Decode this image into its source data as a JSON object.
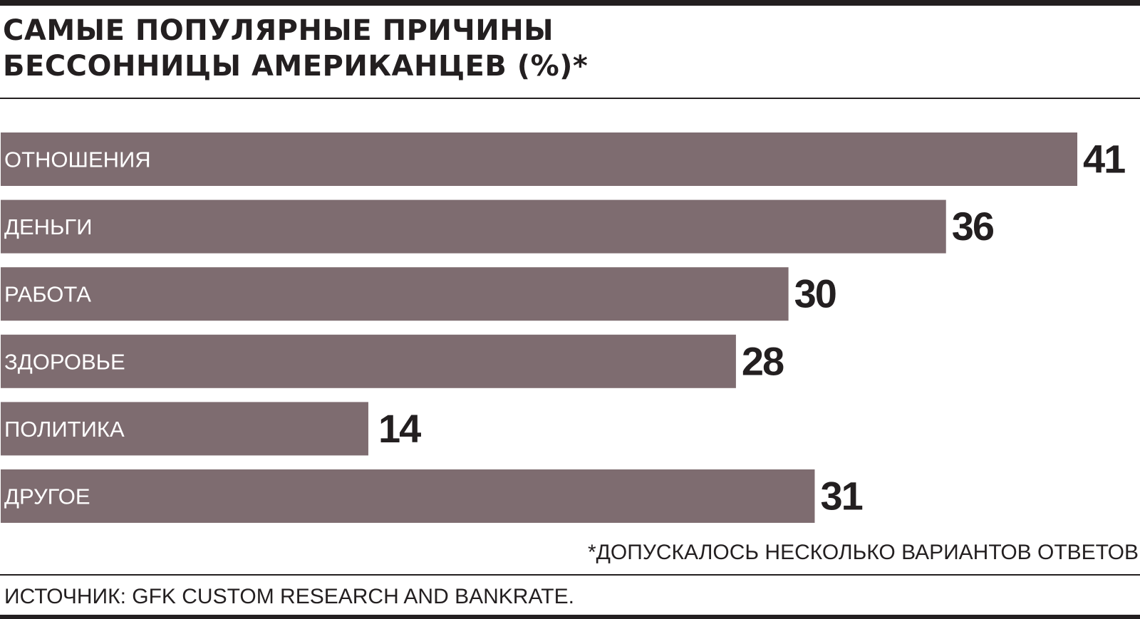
{
  "colors": {
    "bar": "#7e6c70",
    "bar_label": "#ffffff",
    "value_label": "#231f20",
    "rule": "#231f20"
  },
  "chart_data": {
    "type": "bar",
    "orientation": "horizontal",
    "title": "САМЫЕ ПОПУЛЯРНЫЕ ПРИЧИНЫ\nБЕССОННИЦЫ АМЕРИКАНЦЕВ (%)*",
    "categories": [
      "ОТНОШЕНИЯ",
      "ДЕНЬГИ",
      "РАБОТА",
      "ЗДОРОВЬЕ",
      "ПОЛИТИКА",
      "ДРУГОЕ"
    ],
    "values": [
      41,
      36,
      30,
      28,
      14,
      31
    ],
    "xlim": [
      0,
      41
    ],
    "grid": false,
    "legend": "none",
    "footnote": "*ДОПУСКАЛОСЬ НЕСКОЛЬКО ВАРИАНТОВ ОТВЕТОВ",
    "source": "ИСТОЧНИК: GFK CUSTOM RESEARCH AND BANKRATE."
  }
}
